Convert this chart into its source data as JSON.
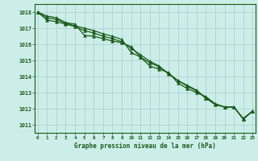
{
  "background_color": "#cceee8",
  "grid_color": "#aacccc",
  "line_color": "#1a5c1a",
  "marker_color": "#1a5c1a",
  "title": "Graphe pression niveau de la mer (hPa)",
  "xlabel_color": "#1a5c1a",
  "x_ticks": [
    0,
    1,
    2,
    3,
    4,
    5,
    6,
    7,
    8,
    9,
    10,
    11,
    12,
    13,
    14,
    15,
    16,
    17,
    18,
    19,
    20,
    21,
    22,
    23
  ],
  "ylim": [
    1010.5,
    1018.5
  ],
  "xlim": [
    -0.3,
    23.3
  ],
  "yticks": [
    1011,
    1012,
    1013,
    1014,
    1015,
    1016,
    1017,
    1018
  ],
  "series": [
    [
      1018.0,
      1017.75,
      1017.65,
      1017.35,
      1017.25,
      1016.55,
      1016.5,
      1016.35,
      1016.2,
      1016.1,
      1015.85,
      1015.2,
      1014.65,
      1014.45,
      1014.25,
      1013.6,
      1013.25,
      1013.0,
      1012.75,
      1012.3,
      1012.1,
      1012.1,
      1011.4,
      1011.85
    ],
    [
      1018.0,
      1017.65,
      1017.55,
      1017.3,
      1017.15,
      1017.0,
      1016.85,
      1016.65,
      1016.5,
      1016.3,
      1015.5,
      1015.2,
      1014.85,
      1014.6,
      1014.2,
      1013.75,
      1013.4,
      1013.1,
      1012.65,
      1012.3,
      1012.1,
      1012.1,
      1011.35,
      1011.85
    ],
    [
      1018.0,
      1017.5,
      1017.4,
      1017.25,
      1017.1,
      1016.85,
      1016.7,
      1016.5,
      1016.35,
      1016.15,
      1015.75,
      1015.35,
      1014.95,
      1014.65,
      1014.15,
      1013.75,
      1013.45,
      1013.15,
      1012.65,
      1012.25,
      1012.1,
      1012.1,
      1011.35,
      1011.85
    ]
  ]
}
